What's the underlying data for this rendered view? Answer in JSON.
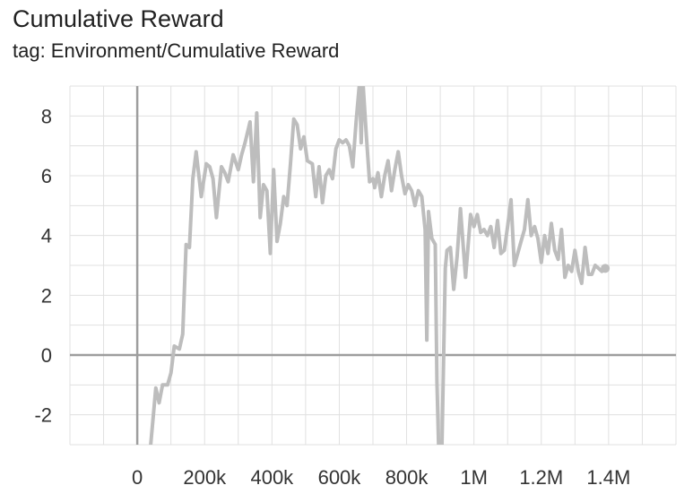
{
  "header": {
    "title": "Cumulative Reward",
    "subtitle": "tag: Environment/Cumulative Reward"
  },
  "colors": {
    "series": "#bdbdbd",
    "grid": "#e0e0e0",
    "zero_axis": "#9e9e9e",
    "text": "#333333"
  },
  "chart_data": {
    "type": "line",
    "title": "Cumulative Reward",
    "subtitle": "tag: Environment/Cumulative Reward",
    "xlabel": "",
    "ylabel": "",
    "xlim": [
      -200000,
      1600000
    ],
    "ylim": [
      -3,
      9
    ],
    "grid": true,
    "x_ticks": [
      0,
      200000,
      400000,
      600000,
      800000,
      1000000,
      1200000,
      1400000
    ],
    "x_tick_labels": [
      "0",
      "200k",
      "400k",
      "600k",
      "800k",
      "1M",
      "1.2M",
      "1.4M"
    ],
    "y_ticks": [
      -2,
      0,
      2,
      4,
      6,
      8
    ],
    "y_tick_labels": [
      "-2",
      "0",
      "2",
      "4",
      "6",
      "8"
    ],
    "series": [
      {
        "x": [
          40000,
          55000,
          65000,
          75000,
          90000,
          100000,
          110000,
          125000,
          135000,
          145000,
          155000,
          165000,
          175000,
          190000,
          205000,
          215000,
          225000,
          235000,
          250000,
          260000,
          270000,
          285000,
          300000,
          310000,
          320000,
          335000,
          345000,
          355000,
          365000,
          375000,
          385000,
          395000,
          405000,
          415000,
          425000,
          435000,
          445000,
          455000,
          465000,
          475000,
          485000,
          495000,
          505000,
          520000,
          530000,
          540000,
          550000,
          560000,
          570000,
          580000,
          590000,
          600000,
          610000,
          620000,
          630000,
          640000,
          650000,
          660000,
          665000,
          670000,
          680000,
          690000,
          700000,
          705000,
          715000,
          725000,
          735000,
          745000,
          755000,
          765000,
          775000,
          785000,
          795000,
          805000,
          815000,
          825000,
          835000,
          845000,
          855000,
          860000,
          865000,
          875000,
          885000,
          890000,
          895000,
          905000,
          915000,
          920000,
          930000,
          940000,
          950000,
          960000,
          975000,
          990000,
          1000000,
          1010000,
          1020000,
          1030000,
          1040000,
          1050000,
          1060000,
          1070000,
          1080000,
          1090000,
          1100000,
          1110000,
          1120000,
          1130000,
          1140000,
          1150000,
          1160000,
          1170000,
          1180000,
          1190000,
          1200000,
          1210000,
          1220000,
          1230000,
          1240000,
          1250000,
          1260000,
          1270000,
          1280000,
          1290000,
          1300000,
          1310000,
          1320000,
          1330000,
          1340000,
          1350000,
          1360000,
          1370000,
          1380000,
          1390000
        ],
        "values": [
          -3.0,
          -1.1,
          -1.6,
          -1.0,
          -1.0,
          -0.6,
          0.3,
          0.2,
          0.7,
          3.7,
          3.6,
          5.9,
          6.8,
          5.3,
          6.4,
          6.3,
          5.9,
          4.6,
          6.3,
          6.1,
          5.8,
          6.7,
          6.2,
          6.7,
          7.1,
          7.8,
          5.8,
          8.1,
          4.6,
          5.7,
          5.5,
          3.4,
          6.2,
          3.8,
          4.4,
          5.3,
          5.0,
          6.4,
          7.9,
          7.7,
          6.9,
          7.3,
          6.5,
          6.4,
          5.3,
          6.3,
          5.1,
          6.0,
          6.2,
          5.9,
          6.9,
          7.2,
          7.1,
          7.2,
          7.0,
          6.3,
          7.8,
          9.1,
          7.1,
          9.2,
          7.4,
          5.8,
          5.9,
          5.6,
          6.1,
          5.3,
          6.0,
          6.5,
          5.5,
          6.2,
          6.8,
          6.0,
          5.4,
          5.7,
          5.5,
          5.0,
          5.5,
          5.3,
          4.2,
          0.5,
          4.8,
          3.9,
          3.7,
          -0.9,
          -3.0,
          -3.0,
          2.9,
          3.5,
          3.6,
          2.2,
          3.3,
          4.9,
          2.6,
          4.7,
          4.3,
          4.7,
          4.1,
          4.2,
          4.0,
          4.3,
          3.6,
          4.5,
          3.4,
          3.5,
          4.3,
          5.2,
          3.0,
          3.4,
          3.8,
          4.2,
          5.2,
          4.0,
          4.3,
          3.9,
          3.1,
          4.0,
          3.4,
          4.4,
          3.5,
          3.2,
          4.2,
          2.6,
          3.0,
          2.8,
          3.5,
          2.8,
          2.4,
          3.6,
          2.7,
          2.7,
          3.0,
          2.9,
          2.8,
          2.9
        ]
      }
    ]
  }
}
